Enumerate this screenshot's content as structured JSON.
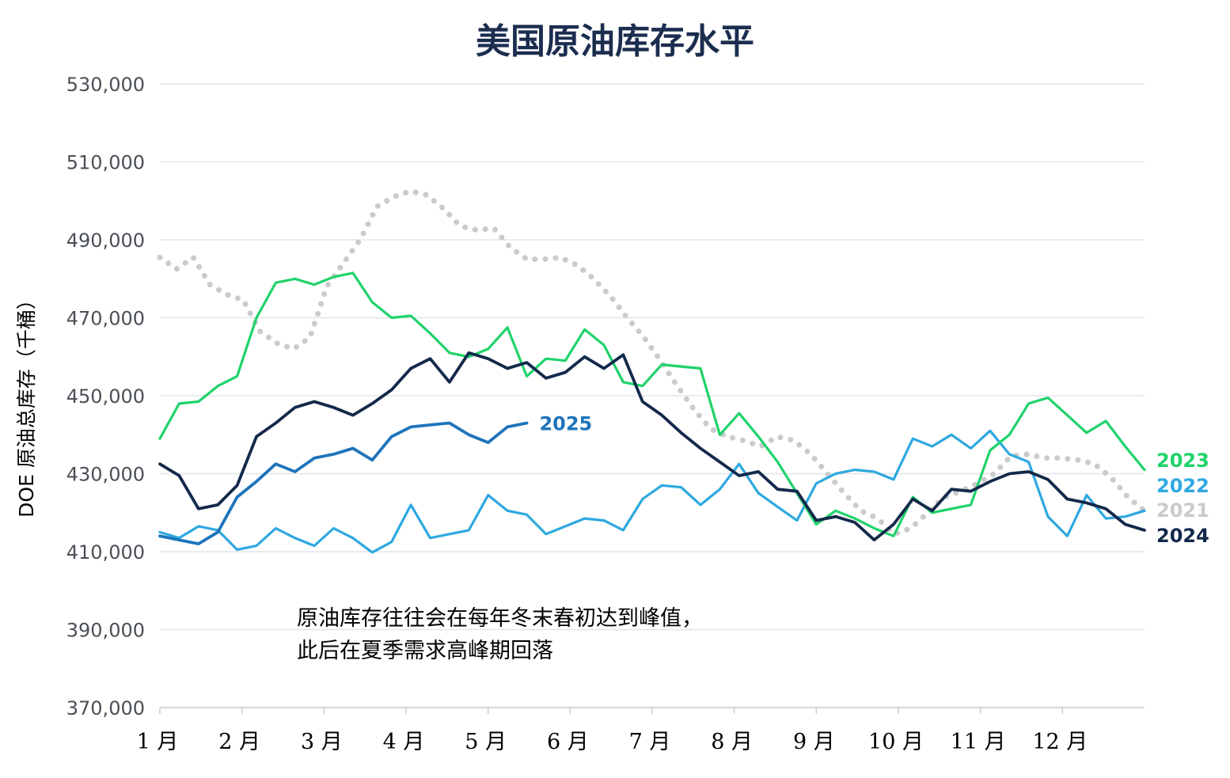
{
  "chart_data": {
    "type": "line",
    "title": "美国原油库存水平",
    "ylabel": "DOE 原油总库存（千桶）",
    "xlabel": "",
    "ylim": [
      370000,
      530000
    ],
    "yticks": [
      530000,
      510000,
      490000,
      470000,
      450000,
      430000,
      410000,
      390000,
      370000
    ],
    "ytick_labels": [
      "530,000",
      "510,000",
      "490,000",
      "470,000",
      "450,000",
      "430,000",
      "410,000",
      "390,000",
      "370,000"
    ],
    "xlim": [
      1,
      52
    ],
    "xtick_labels": [
      "1 月",
      "2 月",
      "3 月",
      "4 月",
      "5 月",
      "6 月",
      "7 月",
      "8 月",
      "9 月",
      "10 月",
      "11 月",
      "12 月"
    ],
    "grid": true,
    "annotation": [
      "原油库存往往会在每年冬末春初达到峰值，",
      "此后在夏季需求高峰期回落"
    ],
    "series": [
      {
        "name": "2021",
        "color": "#c9cbce",
        "style": "dotted",
        "values": [
          485500,
          482500,
          485500,
          478500,
          476000,
          474500,
          466500,
          463500,
          462000,
          465000,
          478000,
          484000,
          490000,
          498500,
          501000,
          502500,
          501500,
          498000,
          493500,
          492500,
          493000,
          488000,
          485000,
          485000,
          485500,
          483500,
          480000,
          475500,
          470000,
          465000,
          459000,
          452500,
          446500,
          441500,
          439500,
          438500,
          437000,
          439500,
          438500,
          435000,
          430000,
          425000,
          420500,
          418500,
          414500,
          416000,
          420000,
          424000,
          425500,
          427500,
          430000,
          434500,
          435000,
          434000,
          434000,
          433500,
          432500,
          429000,
          424000,
          420500
        ]
      },
      {
        "name": "2022",
        "color": "#2ea8e0",
        "style": "solid",
        "values": [
          415000,
          413500,
          416500,
          415500,
          410500,
          411500,
          416000,
          413500,
          411500,
          416000,
          413500,
          409800,
          412500,
          422000,
          413500,
          414500,
          415500,
          424500,
          420500,
          419500,
          414500,
          416500,
          418500,
          418000,
          415500,
          423500,
          427000,
          426500,
          422000,
          426000,
          432500,
          425000,
          421500,
          418000,
          427500,
          430000,
          431000,
          430500,
          428500,
          439000,
          437000,
          440000,
          436500,
          441000,
          435000,
          433000,
          419000,
          414000,
          424500,
          418500,
          419000,
          420500
        ]
      },
      {
        "name": "2023",
        "color": "#1fd36a",
        "style": "solid",
        "values": [
          439000,
          448000,
          448500,
          452500,
          455000,
          470000,
          479000,
          480000,
          478500,
          480500,
          481500,
          474000,
          470000,
          470500,
          466000,
          461000,
          460000,
          462000,
          467500,
          455000,
          459500,
          459000,
          467000,
          463000,
          453500,
          452500,
          458000,
          457500,
          457000,
          440000,
          445500,
          439500,
          433000,
          425000,
          417000,
          420500,
          418500,
          416000,
          414000,
          424000,
          420000,
          421000,
          422000,
          436000,
          440000,
          448000,
          449500,
          445000,
          440500,
          443500,
          437000,
          431000
        ]
      },
      {
        "name": "2024",
        "color": "#13294b",
        "style": "solid",
        "values": [
          432500,
          429500,
          421000,
          422000,
          427000,
          439500,
          443000,
          447000,
          448500,
          447000,
          445000,
          448000,
          451500,
          457000,
          459500,
          453500,
          461000,
          459500,
          457000,
          458500,
          454500,
          456000,
          460000,
          457000,
          460500,
          448500,
          445000,
          440500,
          436500,
          433000,
          429500,
          430500,
          426000,
          425500,
          418000,
          419000,
          417500,
          413000,
          417000,
          423500,
          420500,
          426000,
          425500,
          428000,
          430000,
          430500,
          428500,
          423500,
          422500,
          421000,
          417000,
          415500
        ]
      },
      {
        "name": "2025",
        "color": "#1f74ba",
        "style": "solid",
        "values": [
          414000,
          413000,
          412000,
          415000,
          424000,
          428000,
          432500,
          430500,
          434000,
          435000,
          436500,
          433500,
          439500,
          442000,
          442500,
          443000,
          440000,
          438000,
          442000,
          443000
        ]
      }
    ],
    "series_label_order": [
      "2025",
      "2023",
      "2022",
      "2021",
      "2024"
    ]
  }
}
